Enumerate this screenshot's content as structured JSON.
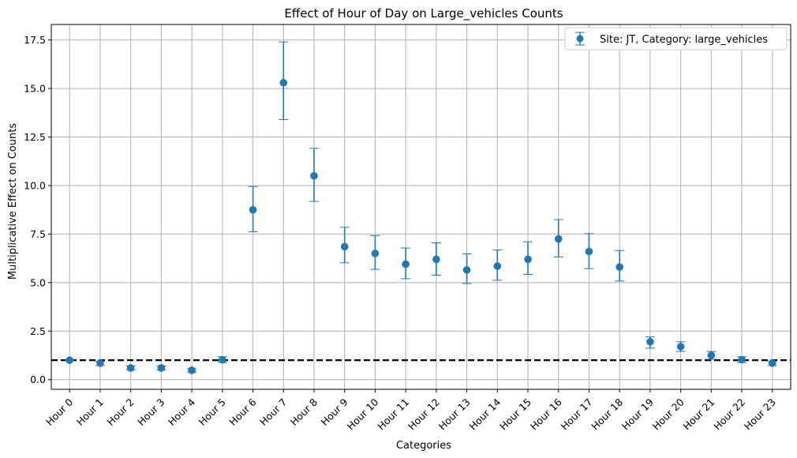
{
  "chart_data": {
    "type": "scatter",
    "title": "Effect of Hour of Day on Large_vehicles Counts",
    "xlabel": "Categories",
    "ylabel": "Multiplicative Effect on Counts",
    "ylim": [
      -0.5,
      18.3
    ],
    "yticks": [
      0.0,
      2.5,
      5.0,
      7.5,
      10.0,
      12.5,
      15.0,
      17.5
    ],
    "ytick_labels": [
      "0.0",
      "2.5",
      "5.0",
      "7.5",
      "10.0",
      "12.5",
      "15.0",
      "17.5"
    ],
    "grid": true,
    "legend_position": "top-right",
    "reference_line": {
      "y": 1.0,
      "style": "dashed",
      "color": "#000000"
    },
    "series_color": "#1f77b4",
    "categories": [
      "Hour 0",
      "Hour 1",
      "Hour 2",
      "Hour 3",
      "Hour 4",
      "Hour 5",
      "Hour 6",
      "Hour 7",
      "Hour 8",
      "Hour 9",
      "Hour 10",
      "Hour 11",
      "Hour 12",
      "Hour 13",
      "Hour 14",
      "Hour 15",
      "Hour 16",
      "Hour 17",
      "Hour 18",
      "Hour 19",
      "Hour 20",
      "Hour 21",
      "Hour 22",
      "Hour 23"
    ],
    "series": [
      {
        "name": "Site: JT, Category: large_vehicles",
        "values": [
          1.0,
          0.85,
          0.6,
          0.6,
          0.48,
          1.02,
          8.75,
          15.3,
          10.5,
          6.85,
          6.5,
          5.95,
          6.2,
          5.65,
          5.85,
          6.2,
          7.25,
          6.6,
          5.8,
          1.95,
          1.7,
          1.25,
          1.03,
          0.85
        ],
        "lower": [
          1.0,
          0.72,
          0.5,
          0.5,
          0.38,
          0.88,
          7.62,
          13.4,
          9.18,
          6.02,
          5.68,
          5.2,
          5.38,
          4.95,
          5.12,
          5.42,
          6.32,
          5.72,
          5.08,
          1.62,
          1.45,
          1.05,
          0.88,
          0.72
        ],
        "upper": [
          1.0,
          0.95,
          0.7,
          0.7,
          0.57,
          1.18,
          9.95,
          17.4,
          11.92,
          7.85,
          7.42,
          6.78,
          7.05,
          6.48,
          6.68,
          7.1,
          8.25,
          7.52,
          6.65,
          2.2,
          1.95,
          1.45,
          1.18,
          0.95
        ]
      }
    ]
  }
}
